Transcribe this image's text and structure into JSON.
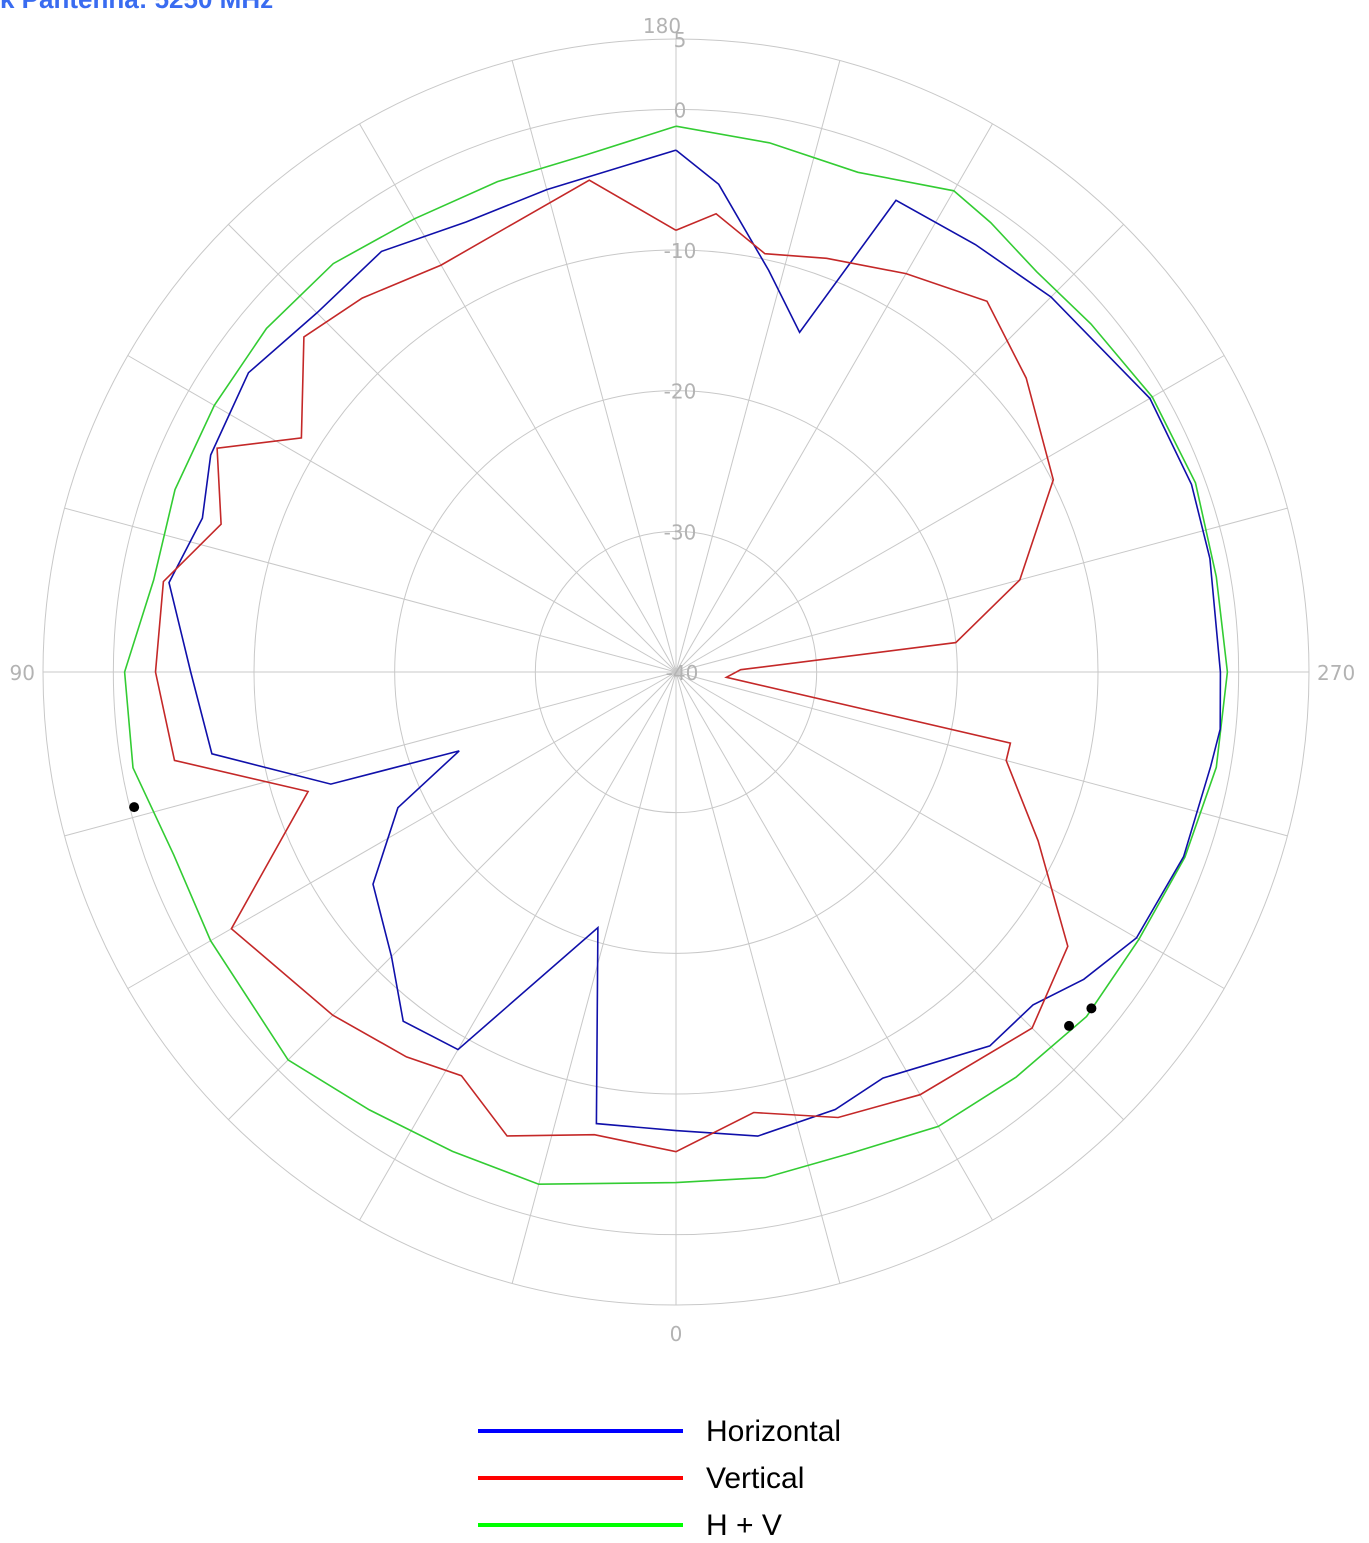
{
  "title": "k Pantenna: 5250 MHz",
  "chart_data": {
    "type": "polar-line",
    "unit_hint": "angle in degrees (0 at bottom, 90 left, 180 top, 270 right); radius in dB",
    "angle_labels": [
      "0",
      "90",
      "180",
      "270"
    ],
    "radial_ticks": [
      {
        "value": 5,
        "label": "5"
      },
      {
        "value": 0,
        "label": "0"
      },
      {
        "value": -10,
        "label": "-10"
      },
      {
        "value": -20,
        "label": "-20"
      },
      {
        "value": -30,
        "label": "-30"
      },
      {
        "value": -40,
        "label": "-40"
      }
    ],
    "rlim": [
      -40,
      5
    ],
    "spokes_every_deg": 15,
    "grid": true,
    "legend_position": "bottom-center",
    "series": [
      {
        "name": "Horizontal",
        "color": "#1010aa",
        "legend_color": "#0000ff",
        "points": [
          [
            180,
            -2.9
          ],
          [
            165,
            -4.5
          ],
          [
            155,
            -4.7
          ],
          [
            145,
            -3.5
          ],
          [
            135,
            -3.9
          ],
          [
            125,
            -2.9
          ],
          [
            115,
            -3.5
          ],
          [
            108,
            -4.6
          ],
          [
            100,
            -3.4
          ],
          [
            90,
            -5.5
          ],
          [
            80,
            -6.5
          ],
          [
            72,
            -14.2
          ],
          [
            70,
            -23.6
          ],
          [
            64,
            -18.0
          ],
          [
            55,
            -13.7
          ],
          [
            45,
            -11.4
          ],
          [
            38,
            -8.5
          ],
          [
            30,
            -9.0
          ],
          [
            17,
            -21.0
          ],
          [
            10,
            -7.4
          ],
          [
            0,
            -7.4
          ],
          [
            350,
            -6.5
          ],
          [
            340,
            -6.9
          ],
          [
            333,
            -7.6
          ],
          [
            320,
            -5.3
          ],
          [
            313,
            -5.3
          ],
          [
            307,
            -3.7
          ],
          [
            300,
            -2.2
          ],
          [
            290,
            -1.6
          ],
          [
            280,
            -1.4
          ],
          [
            276,
            -1.1
          ],
          [
            270,
            -1.3
          ],
          [
            258,
            -1.2
          ],
          [
            250,
            -1.0
          ],
          [
            240,
            -1.1
          ],
          [
            225,
            -2.3
          ],
          [
            215,
            -2.9
          ],
          [
            205,
            -3.0
          ],
          [
            200,
            -14.3
          ],
          [
            193,
            -10.7
          ],
          [
            185,
            -5.2
          ]
        ]
      },
      {
        "name": "Vertical",
        "color": "#c42828",
        "legend_color": "#ff0000",
        "points": [
          [
            180,
            -8.6
          ],
          [
            170,
            -4.5
          ],
          [
            160,
            -6.1
          ],
          [
            150,
            -6.6
          ],
          [
            140,
            -5.3
          ],
          [
            132,
            -4.4
          ],
          [
            122,
            -8.6
          ],
          [
            116,
            -3.7
          ],
          [
            108,
            -6.0
          ],
          [
            100,
            -3.0
          ],
          [
            90,
            -3.0
          ],
          [
            80,
            -3.8
          ],
          [
            72,
            -12.5
          ],
          [
            60,
            -3.5
          ],
          [
            45,
            -5.5
          ],
          [
            35,
            -6.6
          ],
          [
            28,
            -7.5
          ],
          [
            20,
            -4.9
          ],
          [
            10,
            -6.6
          ],
          [
            0,
            -5.9
          ],
          [
            350,
            -8.2
          ],
          [
            340,
            -6.3
          ],
          [
            330,
            -5.3
          ],
          [
            315,
            -4.2
          ],
          [
            305,
            -6.0
          ],
          [
            295,
            -11.6
          ],
          [
            285,
            -15.7
          ],
          [
            282,
            -15.7
          ],
          [
            276,
            -36.4
          ],
          [
            268,
            -35.4
          ],
          [
            264,
            -20.0
          ],
          [
            255,
            -14.7
          ],
          [
            243,
            -9.9
          ],
          [
            230,
            -7.5
          ],
          [
            220,
            -5.6
          ],
          [
            210,
            -7.3
          ],
          [
            200,
            -8.7
          ],
          [
            192,
            -9.6
          ],
          [
            185,
            -7.3
          ]
        ]
      },
      {
        "name": "H + V",
        "color": "#33cc33",
        "legend_color": "#00ff00",
        "points": [
          [
            180,
            -1.2
          ],
          [
            170,
            -2.7
          ],
          [
            160,
            -2.9
          ],
          [
            150,
            -2.8
          ],
          [
            140,
            -2.1
          ],
          [
            130,
            -2.0
          ],
          [
            120,
            -2.1
          ],
          [
            110,
            -2.1
          ],
          [
            100,
            -2.3
          ],
          [
            90,
            -0.8
          ],
          [
            80,
            -0.8
          ],
          [
            70,
            -2.0
          ],
          [
            60,
            -1.8
          ],
          [
            45,
            -1.0
          ],
          [
            35,
            -2.0
          ],
          [
            25,
            -2.4
          ],
          [
            15,
            -2.3
          ],
          [
            0,
            -3.7
          ],
          [
            350,
            -3.5
          ],
          [
            340,
            -3.6
          ],
          [
            330,
            -2.7
          ],
          [
            320,
            -2.4
          ],
          [
            310,
            -1.9
          ],
          [
            300,
            -2.0
          ],
          [
            290,
            -1.5
          ],
          [
            280,
            -1.0
          ],
          [
            270,
            -0.8
          ],
          [
            260,
            -1.0
          ],
          [
            250,
            -0.7
          ],
          [
            240,
            -0.9
          ],
          [
            230,
            -1.5
          ],
          [
            222,
            -1.7
          ],
          [
            215,
            -1.0
          ],
          [
            210,
            -0.5
          ],
          [
            200,
            -2.2
          ],
          [
            190,
            -1.8
          ]
        ]
      }
    ],
    "markers": [
      {
        "angle": 76,
        "value": -0.3
      },
      {
        "angle": 312,
        "value": -2.4
      },
      {
        "angle": 309,
        "value": -2.0
      }
    ]
  }
}
